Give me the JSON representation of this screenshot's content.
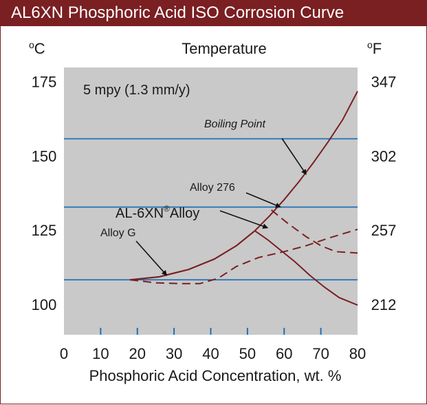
{
  "header": {
    "title": "AL6XN Phosphoric Acid ISO Corrosion Curve"
  },
  "chart_data": {
    "type": "line",
    "title": "Temperature",
    "subtitle": "5 mpy (1.3 mm/y)",
    "xlabel": "Phosphoric Acid  Concentration, wt. %",
    "ylabel_left": "oC",
    "ylabel_right": "oF",
    "xlim": [
      0,
      80
    ],
    "ylim": [
      90,
      180
    ],
    "x_ticks": [
      0,
      10,
      20,
      30,
      40,
      50,
      60,
      70,
      80
    ],
    "x_tick_labels": [
      "0",
      "10",
      "20",
      "30",
      "40",
      "50",
      "60",
      "70",
      "80"
    ],
    "y_ticks_left": [
      100,
      125,
      150,
      175
    ],
    "y_tick_labels_left": [
      "100",
      "125",
      "150",
      "175"
    ],
    "y_tick_labels_right": [
      "212",
      "257",
      "302",
      "347"
    ],
    "grid": false,
    "horizontal_lines": [
      {
        "y": 108.5
      },
      {
        "y": 133
      },
      {
        "y": 156
      }
    ],
    "series": [
      {
        "name": "Boiling Point",
        "style": "solid",
        "x": [
          18,
          26,
          34,
          41,
          47,
          52,
          56,
          60,
          64,
          68,
          72,
          76,
          80
        ],
        "y": [
          108.5,
          109.5,
          112,
          115.5,
          120,
          125,
          130,
          135.5,
          141.5,
          148,
          155,
          162.5,
          172
        ]
      },
      {
        "name": "AL-6XN Alloy",
        "style": "solid",
        "x": [
          18,
          26,
          34,
          41,
          47,
          52,
          55.5,
          59,
          63,
          67,
          71,
          75,
          80
        ],
        "y": [
          108.5,
          109.5,
          112,
          115.5,
          120,
          125,
          122,
          118.5,
          114.5,
          110,
          106,
          102.5,
          100
        ]
      },
      {
        "name": "Alloy 276",
        "style": "dashed",
        "x": [
          56.5,
          61,
          66,
          70,
          74,
          80
        ],
        "y": [
          132,
          127.5,
          123,
          120,
          118,
          117.5
        ]
      },
      {
        "name": "Alloy G",
        "style": "dashed",
        "x": [
          18,
          25,
          32,
          37,
          42,
          47,
          53,
          60,
          66,
          72,
          80
        ],
        "y": [
          108.5,
          107.5,
          107.2,
          107.2,
          109,
          113,
          116,
          118,
          120,
          122.5,
          125.5
        ]
      }
    ],
    "annotations": [
      {
        "text": "Boiling Point",
        "point": [
          66,
          144
        ],
        "style": "italic"
      },
      {
        "text": "Alloy 276",
        "point": [
          59,
          133
        ]
      },
      {
        "text": "AL-6XN",
        "superscript": "®",
        "suffix": "Alloy",
        "point": [
          55.5,
          126
        ]
      },
      {
        "text": "Alloy G",
        "point": [
          28,
          110
        ]
      }
    ],
    "colors": {
      "plot_bg": "#c9c9c9",
      "curve": "#7a1f22",
      "hline": "#1f6fb5",
      "tick": "#1f6fb5",
      "header": "#7a1f22"
    }
  }
}
